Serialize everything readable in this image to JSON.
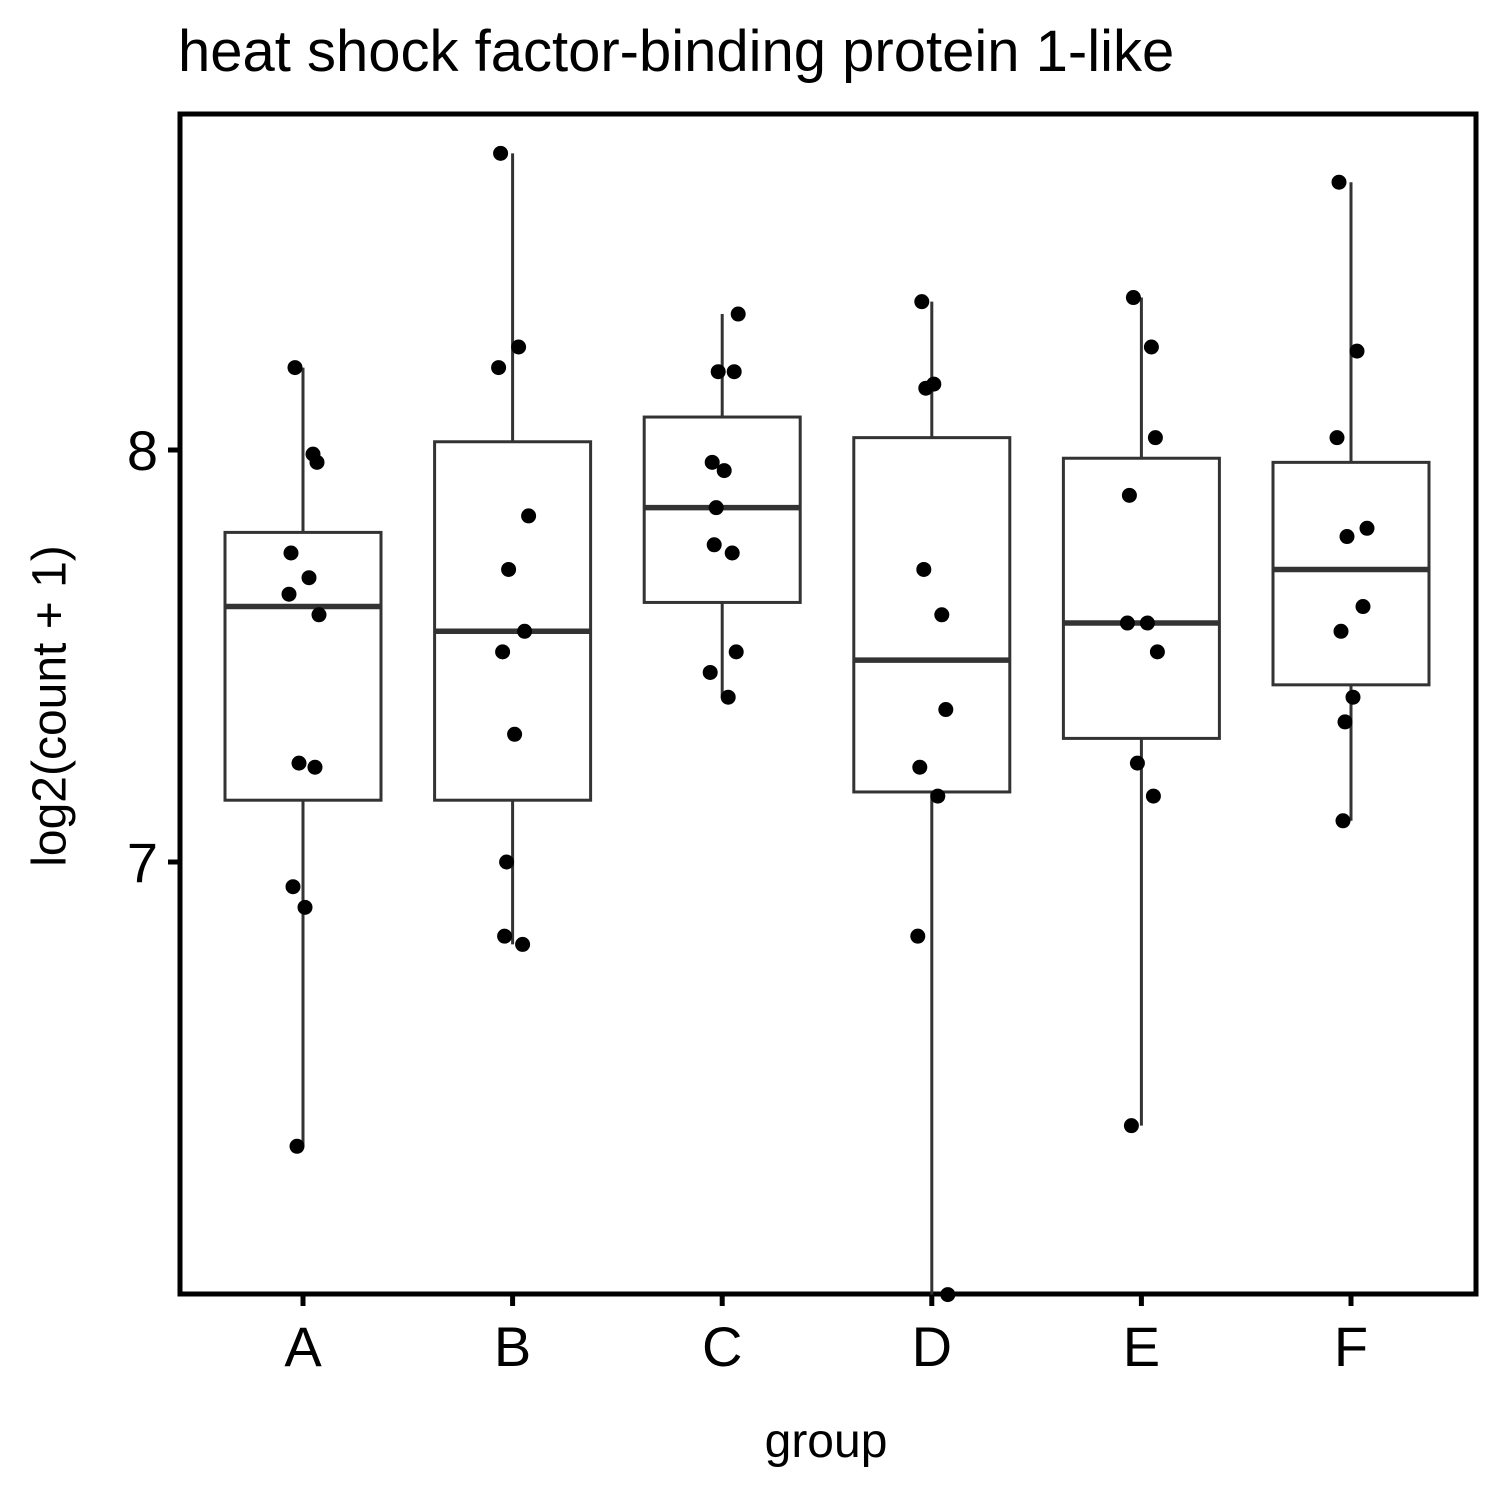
{
  "chart_data": {
    "type": "boxplot",
    "title": "heat shock factor-binding protein 1-like",
    "xlabel": "group",
    "ylabel": "log2(count + 1)",
    "ylim": [
      5.9,
      8.82
    ],
    "yticks": [
      7,
      8
    ],
    "grid": false,
    "legend": "none",
    "categories": [
      "A",
      "B",
      "C",
      "D",
      "E",
      "F"
    ],
    "boxes": [
      {
        "group": "A",
        "lower_whisker": 6.31,
        "q1": 7.15,
        "median": 7.62,
        "q3": 7.8,
        "upper_whisker": 8.2
      },
      {
        "group": "B",
        "lower_whisker": 6.8,
        "q1": 7.15,
        "median": 7.56,
        "q3": 8.02,
        "upper_whisker": 8.72
      },
      {
        "group": "C",
        "lower_whisker": 7.4,
        "q1": 7.63,
        "median": 7.86,
        "q3": 8.08,
        "upper_whisker": 8.33
      },
      {
        "group": "D",
        "lower_whisker": 5.95,
        "q1": 7.17,
        "median": 7.49,
        "q3": 8.03,
        "upper_whisker": 8.36
      },
      {
        "group": "E",
        "lower_whisker": 6.36,
        "q1": 7.3,
        "median": 7.58,
        "q3": 7.98,
        "upper_whisker": 8.37
      },
      {
        "group": "F",
        "lower_whisker": 7.1,
        "q1": 7.43,
        "median": 7.71,
        "q3": 7.97,
        "upper_whisker": 8.65
      }
    ],
    "points": [
      {
        "group": "A",
        "values": [
          8.2,
          7.99,
          7.97,
          7.75,
          7.69,
          7.65,
          7.6,
          7.24,
          7.23,
          6.94,
          6.89,
          6.31
        ]
      },
      {
        "group": "B",
        "values": [
          8.72,
          8.25,
          8.2,
          7.84,
          7.71,
          7.56,
          7.51,
          7.31,
          7.0,
          6.82,
          6.8
        ]
      },
      {
        "group": "C",
        "values": [
          8.33,
          8.19,
          8.19,
          7.97,
          7.95,
          7.86,
          7.77,
          7.75,
          7.51,
          7.46,
          7.4
        ]
      },
      {
        "group": "D",
        "values": [
          8.36,
          8.16,
          8.15,
          7.71,
          7.6,
          7.37,
          7.23,
          7.16,
          6.82,
          5.95
        ]
      },
      {
        "group": "E",
        "values": [
          8.37,
          8.25,
          8.03,
          7.89,
          7.58,
          7.58,
          7.51,
          7.24,
          7.16,
          6.36
        ]
      },
      {
        "group": "F",
        "values": [
          8.65,
          8.24,
          8.03,
          7.81,
          7.79,
          7.62,
          7.56,
          7.4,
          7.34,
          7.1
        ]
      }
    ]
  }
}
